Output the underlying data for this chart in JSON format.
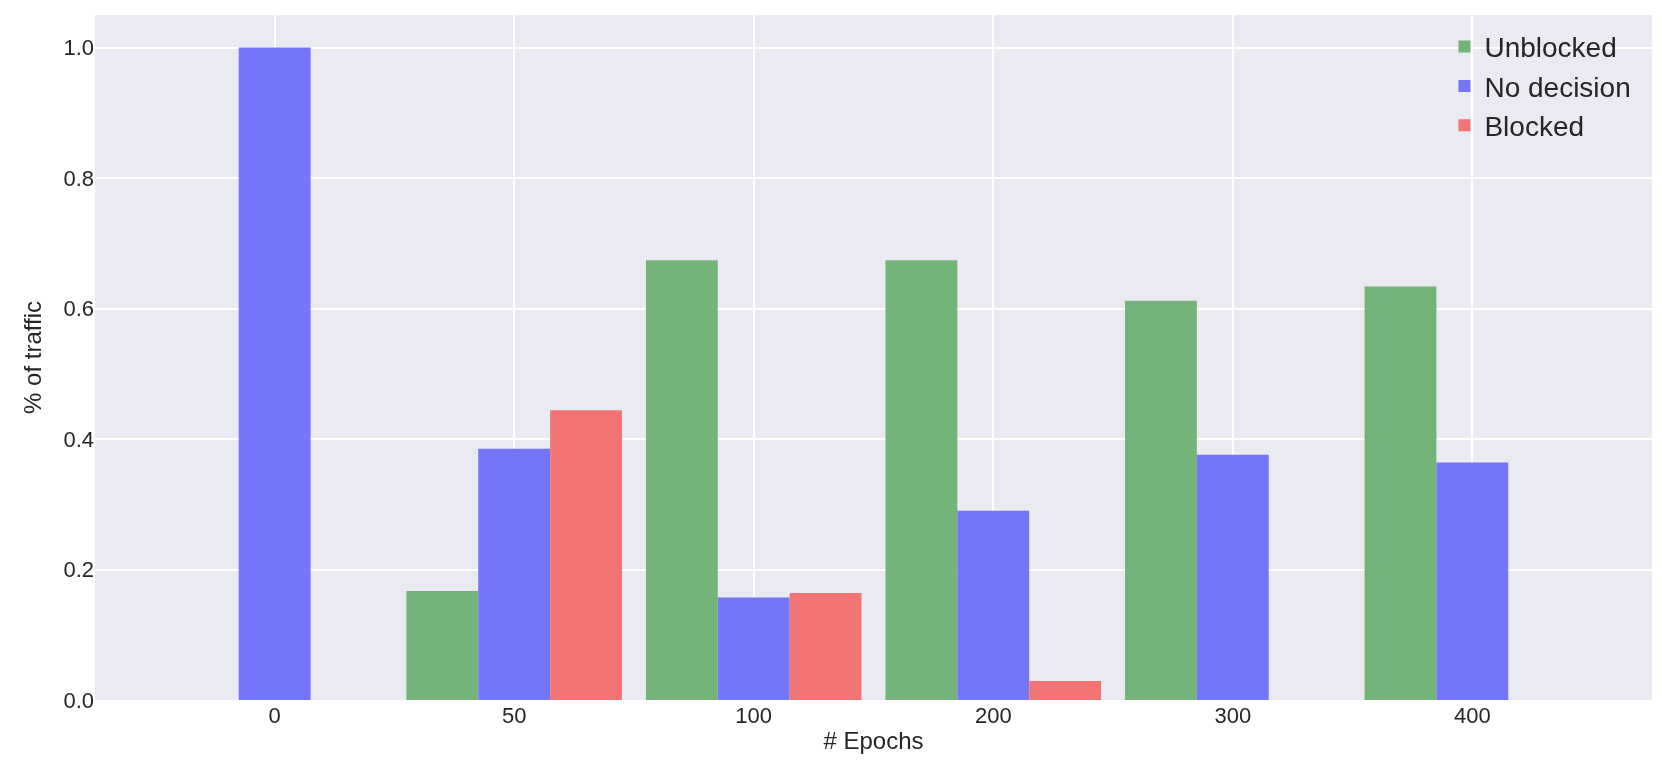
{
  "chart_data": {
    "type": "bar",
    "xlabel": "# Epochs",
    "ylabel": "% of traffic",
    "categories": [
      "0",
      "50",
      "100",
      "200",
      "300",
      "400"
    ],
    "series": [
      {
        "name": "Unblocked",
        "color": "#74b47a",
        "values": [
          null,
          0.167,
          0.674,
          0.674,
          0.612,
          0.634
        ]
      },
      {
        "name": "No decision",
        "color": "#7575f7",
        "values": [
          1.0,
          0.385,
          0.157,
          0.29,
          0.376,
          0.364
        ]
      },
      {
        "name": "Blocked",
        "color": "#f37475",
        "values": [
          null,
          0.444,
          0.164,
          0.029,
          null,
          null
        ]
      }
    ],
    "ylim": [
      0,
      1.05
    ],
    "yticks": [
      {
        "value": 0,
        "label": "0.0"
      },
      0.2,
      0.4,
      0.6,
      0.8,
      {
        "value": 1,
        "label": "1.0"
      }
    ],
    "grid": true,
    "legend": "top right"
  }
}
